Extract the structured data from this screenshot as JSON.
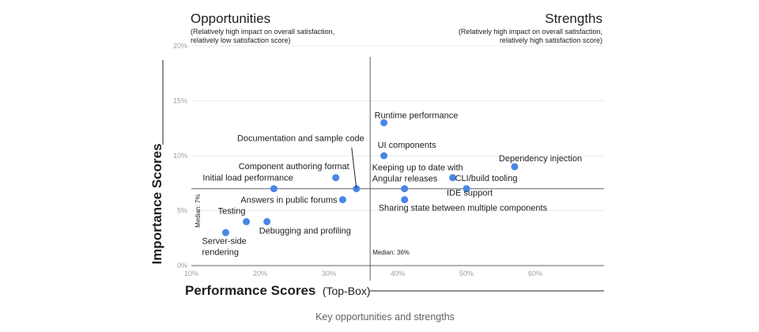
{
  "chart_data": {
    "type": "scatter",
    "title": "",
    "caption": "Key opportunities and strengths",
    "quadrants": {
      "left": {
        "title": "Opportunities",
        "subtitle_lines": [
          "(Relatively high impact on overall satisfaction,",
          "relatively low satisfaction score)"
        ]
      },
      "right": {
        "title": "Strengths",
        "subtitle_lines": [
          "(Relatively high impact on overall satisfaction,",
          "relatively high satisfaction score)"
        ]
      }
    },
    "xlabel": {
      "main": "Performance Scores",
      "suffix": "(Top-Box)"
    },
    "ylabel": "Importance Scores",
    "xlim": [
      10,
      70
    ],
    "ylim": [
      0,
      20
    ],
    "x_ticks": [
      10,
      20,
      30,
      40,
      50,
      60
    ],
    "x_tick_labels": [
      "10%",
      "20%",
      "30%",
      "40%",
      "50%",
      "60%"
    ],
    "y_ticks": [
      0,
      5,
      10,
      15,
      20
    ],
    "y_tick_labels": [
      "0%",
      "5%",
      "10%",
      "15%",
      "20%"
    ],
    "medians": {
      "x": 36,
      "x_label": "Median: 36%",
      "y": 7,
      "y_label": "Median: 7%"
    },
    "point_color": "#4a86e8",
    "points": [
      {
        "label": "Runtime performance",
        "x": 38,
        "y": 13
      },
      {
        "label": "UI components",
        "x": 38,
        "y": 10
      },
      {
        "label": "Dependency injection",
        "x": 57,
        "y": 9
      },
      {
        "label": "Documentation and sample code",
        "x": 34,
        "y": 7.0
      },
      {
        "label": "Component authoring format",
        "x": 31,
        "y": 8.0
      },
      {
        "label": "Initial load performance",
        "x": 22,
        "y": 7.0
      },
      {
        "label": "Keeping up to date with Angular releases",
        "x": 41,
        "y": 7.0
      },
      {
        "label": "CLI/build tooling",
        "x": 48,
        "y": 8.0
      },
      {
        "label": "IDE support",
        "x": 50,
        "y": 7.0
      },
      {
        "label": "Answers in public forums",
        "x": 32,
        "y": 6.0
      },
      {
        "label": "Sharing state between multiple components",
        "x": 41,
        "y": 6.0
      },
      {
        "label": "Testing",
        "x": 18,
        "y": 4.0
      },
      {
        "label": "Debugging and profiling",
        "x": 21,
        "y": 4.0
      },
      {
        "label": "Server-side rendering",
        "x": 15,
        "y": 3.0
      }
    ]
  }
}
